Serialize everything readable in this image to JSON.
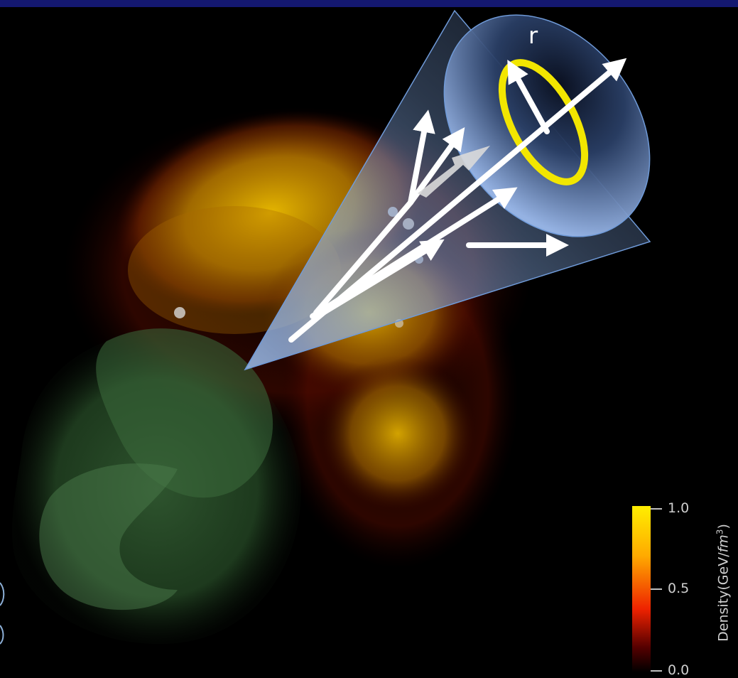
{
  "image": {
    "cone_label": "r",
    "colorbar": {
      "title_prefix": "Density(GeV/",
      "title_unit": "fm",
      "title_exp": "3",
      "title_suffix": ")",
      "ticks": [
        "1.0",
        "0.5",
        "0.0"
      ],
      "gradient_colors": [
        "#ffee00",
        "#ff8800",
        "#ee2200",
        "#000000"
      ]
    },
    "colors": {
      "background": "#000000",
      "top_bar": "#141870",
      "cone_fill": "#8fb2e8",
      "ring": "#f2e600",
      "arrow": "#ffffff",
      "density_high": "#e8c200",
      "density_low": "#2e5a2e"
    }
  }
}
